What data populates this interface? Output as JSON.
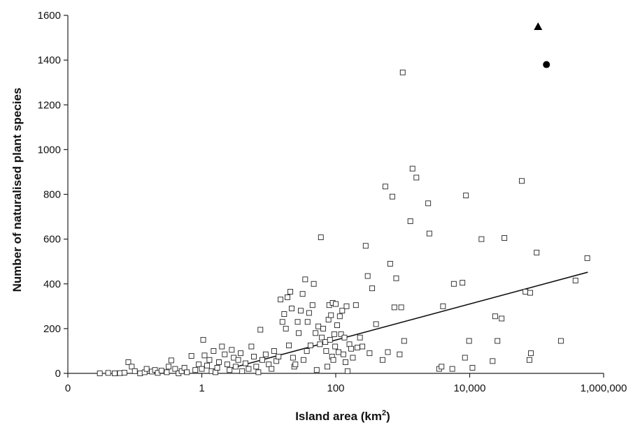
{
  "chart_data": {
    "type": "scatter",
    "xlabel": "Island area (km",
    "xlabel_sup": "2",
    "xlabel_close": ")",
    "ylabel": "Number of naturalised plant species",
    "x_scale": "log10",
    "xlim": [
      0.01,
      1000000
    ],
    "ylim": [
      0,
      1600
    ],
    "x_ticks": [
      {
        "value": 0.01,
        "label": "0"
      },
      {
        "value": 1,
        "label": "1"
      },
      {
        "value": 100,
        "label": "100"
      },
      {
        "value": 10000,
        "label": "10,000"
      },
      {
        "value": 1000000,
        "label": "1,000,000"
      }
    ],
    "y_ticks": [
      0,
      200,
      400,
      600,
      800,
      1000,
      1200,
      1400,
      1600
    ],
    "grid": false,
    "trend_line": {
      "x": [
        2.5,
        580000
      ],
      "y": [
        20,
        452
      ]
    },
    "series": [
      {
        "marker": "open-square",
        "points": [
          [
            0.03,
            0
          ],
          [
            0.04,
            2
          ],
          [
            0.05,
            0
          ],
          [
            0.06,
            1
          ],
          [
            0.07,
            3
          ],
          [
            0.08,
            50
          ],
          [
            0.09,
            30
          ],
          [
            0.1,
            10
          ],
          [
            0.12,
            0
          ],
          [
            0.14,
            5
          ],
          [
            0.15,
            20
          ],
          [
            0.18,
            8
          ],
          [
            0.2,
            15
          ],
          [
            0.22,
            2
          ],
          [
            0.25,
            12
          ],
          [
            0.3,
            5
          ],
          [
            0.32,
            30
          ],
          [
            0.35,
            58
          ],
          [
            0.4,
            20
          ],
          [
            0.45,
            0
          ],
          [
            0.5,
            10
          ],
          [
            0.55,
            25
          ],
          [
            0.6,
            5
          ],
          [
            0.7,
            78
          ],
          [
            0.8,
            15
          ],
          [
            0.9,
            40
          ],
          [
            1.0,
            20
          ],
          [
            1.05,
            150
          ],
          [
            1.1,
            80
          ],
          [
            1.2,
            35
          ],
          [
            1.3,
            60
          ],
          [
            1.4,
            10
          ],
          [
            1.5,
            100
          ],
          [
            1.6,
            5
          ],
          [
            1.7,
            25
          ],
          [
            1.8,
            50
          ],
          [
            2.0,
            120
          ],
          [
            2.2,
            85
          ],
          [
            2.4,
            40
          ],
          [
            2.6,
            15
          ],
          [
            2.8,
            105
          ],
          [
            3.0,
            70
          ],
          [
            3.2,
            30
          ],
          [
            3.5,
            60
          ],
          [
            3.8,
            90
          ],
          [
            4.0,
            10
          ],
          [
            4.5,
            45
          ],
          [
            5.0,
            20
          ],
          [
            5.5,
            120
          ],
          [
            6.0,
            75
          ],
          [
            6.5,
            30
          ],
          [
            7.0,
            5
          ],
          [
            7.5,
            195
          ],
          [
            8.0,
            60
          ],
          [
            9.0,
            85
          ],
          [
            10,
            40
          ],
          [
            11,
            20
          ],
          [
            12,
            100
          ],
          [
            13,
            55
          ],
          [
            14,
            75
          ],
          [
            15,
            330
          ],
          [
            16,
            230
          ],
          [
            17,
            265
          ],
          [
            18,
            200
          ],
          [
            19,
            340
          ],
          [
            20,
            125
          ],
          [
            21,
            365
          ],
          [
            22,
            290
          ],
          [
            23,
            70
          ],
          [
            24,
            30
          ],
          [
            25,
            40
          ],
          [
            27,
            230
          ],
          [
            28,
            180
          ],
          [
            30,
            280
          ],
          [
            32,
            355
          ],
          [
            33,
            60
          ],
          [
            35,
            420
          ],
          [
            37,
            100
          ],
          [
            38,
            230
          ],
          [
            40,
            270
          ],
          [
            42,
            125
          ],
          [
            45,
            305
          ],
          [
            47,
            400
          ],
          [
            50,
            180
          ],
          [
            52,
            15
          ],
          [
            55,
            210
          ],
          [
            58,
            130
          ],
          [
            60,
            608
          ],
          [
            62,
            160
          ],
          [
            65,
            200
          ],
          [
            70,
            140
          ],
          [
            72,
            100
          ],
          [
            75,
            30
          ],
          [
            78,
            240
          ],
          [
            80,
            305
          ],
          [
            82,
            150
          ],
          [
            85,
            260
          ],
          [
            88,
            75
          ],
          [
            90,
            315
          ],
          [
            92,
            60
          ],
          [
            95,
            175
          ],
          [
            98,
            120
          ],
          [
            100,
            310
          ],
          [
            105,
            215
          ],
          [
            110,
            95
          ],
          [
            115,
            255
          ],
          [
            120,
            175
          ],
          [
            125,
            280
          ],
          [
            130,
            85
          ],
          [
            135,
            160
          ],
          [
            140,
            50
          ],
          [
            145,
            300
          ],
          [
            150,
            10
          ],
          [
            160,
            130
          ],
          [
            170,
            110
          ],
          [
            180,
            70
          ],
          [
            200,
            305
          ],
          [
            210,
            115
          ],
          [
            230,
            160
          ],
          [
            250,
            120
          ],
          [
            280,
            570
          ],
          [
            300,
            435
          ],
          [
            320,
            90
          ],
          [
            350,
            380
          ],
          [
            400,
            220
          ],
          [
            500,
            60
          ],
          [
            550,
            835
          ],
          [
            600,
            95
          ],
          [
            650,
            490
          ],
          [
            700,
            790
          ],
          [
            750,
            295
          ],
          [
            800,
            425
          ],
          [
            900,
            85
          ],
          [
            950,
            295
          ],
          [
            1000,
            1345
          ],
          [
            1050,
            145
          ],
          [
            1300,
            680
          ],
          [
            1400,
            915
          ],
          [
            1600,
            875
          ],
          [
            2400,
            760
          ],
          [
            2500,
            625
          ],
          [
            3500,
            20
          ],
          [
            3800,
            30
          ],
          [
            4000,
            300
          ],
          [
            5500,
            20
          ],
          [
            5800,
            400
          ],
          [
            7800,
            405
          ],
          [
            8500,
            70
          ],
          [
            8800,
            795
          ],
          [
            9800,
            145
          ],
          [
            11000,
            25
          ],
          [
            15000,
            600
          ],
          [
            22000,
            55
          ],
          [
            24000,
            255
          ],
          [
            26000,
            145
          ],
          [
            30000,
            245
          ],
          [
            33000,
            605
          ],
          [
            60000,
            860
          ],
          [
            68000,
            365
          ],
          [
            78000,
            60
          ],
          [
            80000,
            360
          ],
          [
            82000,
            90
          ],
          [
            100000,
            540
          ],
          [
            230000,
            145
          ],
          [
            380000,
            415
          ],
          [
            570000,
            515
          ]
        ]
      },
      {
        "marker": "filled-triangle",
        "points": [
          [
            105000,
            1550
          ]
        ]
      },
      {
        "marker": "filled-circle",
        "points": [
          [
            140000,
            1380
          ]
        ]
      }
    ]
  }
}
